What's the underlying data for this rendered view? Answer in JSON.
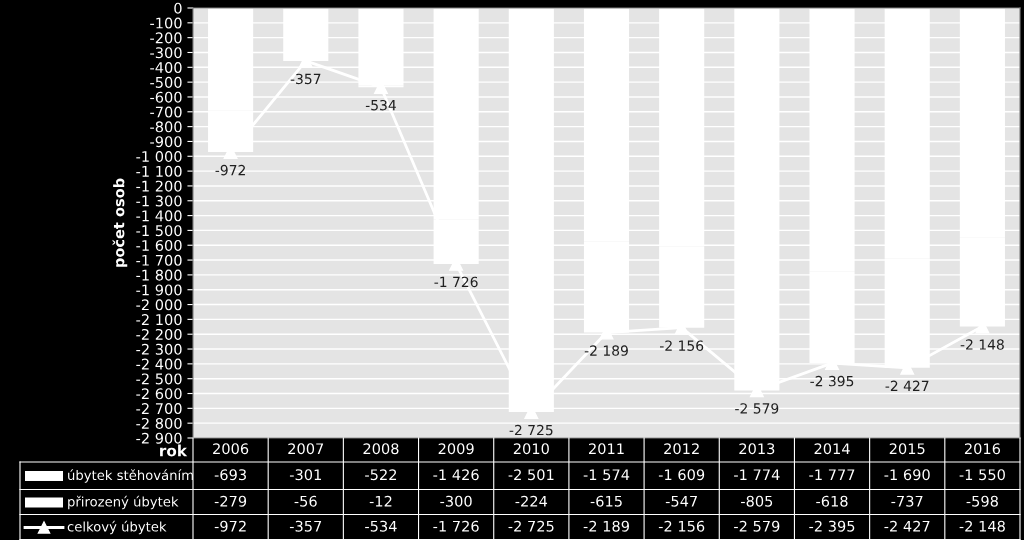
{
  "chart_data": {
    "type": "bar",
    "stacked": true,
    "ylabel": "počet osob",
    "xlabel": "rok",
    "legend": "bottom",
    "grid": "y",
    "categories": [
      "2006",
      "2007",
      "2008",
      "2009",
      "2010",
      "2011",
      "2012",
      "2013",
      "2014",
      "2015",
      "2016"
    ],
    "ylim": [
      -2900,
      0
    ],
    "yticks": [
      0,
      -100,
      -200,
      -300,
      -400,
      -500,
      -600,
      -700,
      -800,
      -900,
      {
        "value": -1000,
        "label": "-1 000"
      },
      {
        "value": -1100,
        "label": "-1 100"
      },
      {
        "value": -1200,
        "label": "-1 200"
      },
      {
        "value": -1300,
        "label": "-1 300"
      },
      {
        "value": -1400,
        "label": "-1 400"
      },
      {
        "value": -1500,
        "label": "-1 500"
      },
      {
        "value": -1600,
        "label": "-1 600"
      },
      {
        "value": -1700,
        "label": "-1 700"
      },
      {
        "value": -1800,
        "label": "-1 800"
      },
      {
        "value": -1900,
        "label": "-1 900"
      },
      {
        "value": -2000,
        "label": "-2 000"
      },
      {
        "value": -2100,
        "label": "-2 100"
      },
      {
        "value": -2200,
        "label": "-2 200"
      },
      {
        "value": -2300,
        "label": "-2 300"
      },
      {
        "value": -2400,
        "label": "-2 400"
      },
      {
        "value": -2500,
        "label": "-2 500"
      },
      {
        "value": -2600,
        "label": "-2 600"
      },
      {
        "value": -2700,
        "label": "-2 700"
      },
      {
        "value": -2800,
        "label": "-2 800"
      },
      {
        "value": -2900,
        "label": "-2 900"
      }
    ],
    "series": [
      {
        "name": "úbytek stěhováním",
        "color": "#ffffff",
        "values": [
          -693,
          -301,
          -522,
          -1426,
          -2501,
          -1574,
          -1609,
          -1774,
          -1777,
          -1690,
          -1550
        ],
        "value_labels": [
          "-693",
          "-301",
          "-522",
          "-1 426",
          "-2 501",
          "-1 574",
          "-1 609",
          "-1 774",
          "-1 777",
          "-1 690",
          "-1 550"
        ]
      },
      {
        "name": "přirozený úbytek",
        "color": "#ffffff",
        "values": [
          -279,
          -56,
          -12,
          -300,
          -224,
          -615,
          -547,
          -805,
          -618,
          -737,
          -598
        ],
        "value_labels": [
          "-279",
          "-56",
          "-12",
          "-300",
          "-224",
          "-615",
          "-547",
          "-805",
          "-618",
          "-737",
          "-598"
        ]
      },
      {
        "name": "celkový úbytek",
        "type": "line",
        "color": "#ffffff",
        "marker": "triangle",
        "line_style": "solid",
        "values": [
          -972,
          -357,
          -534,
          -1726,
          -2725,
          -2189,
          -2156,
          -2579,
          -2395,
          -2427,
          -2148
        ],
        "value_labels": [
          "-972",
          "-357",
          "-534",
          "-1 726",
          "-2 725",
          "-2 189",
          "-2 156",
          "-2 579",
          "-2 395",
          "-2 427",
          "-2 148"
        ]
      }
    ]
  }
}
